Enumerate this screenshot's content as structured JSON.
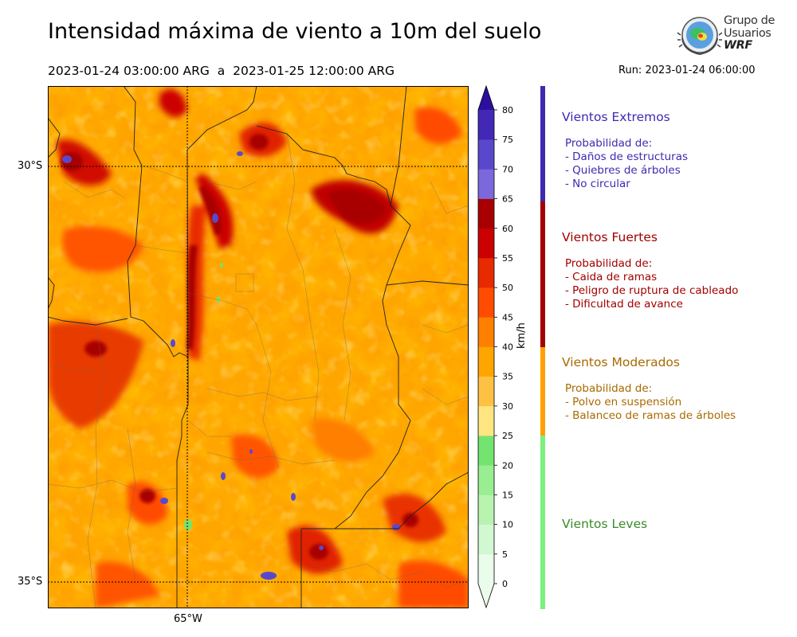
{
  "header": {
    "title": "Intensidad máxima de viento a 10m del suelo",
    "period": "2023-01-24 03:00:00 ARG  a  2023-01-25 12:00:00 ARG",
    "run": "Run: 2023-01-24 06:00:00"
  },
  "logo": {
    "line1": "Grupo de",
    "line2": "Usuarios",
    "line3": "WRF"
  },
  "map": {
    "lat_labels": [
      "30°S",
      "35°S"
    ],
    "lon_labels": [
      "65°W"
    ]
  },
  "colorbar": {
    "unit": "km/h",
    "ticks": [
      "0",
      "5",
      "10",
      "15",
      "20",
      "25",
      "30",
      "35",
      "40",
      "45",
      "50",
      "55",
      "60",
      "65",
      "70",
      "75",
      "80"
    ],
    "colors": [
      "#eafdea",
      "#d2f8d2",
      "#b8f3b0",
      "#98ee90",
      "#74e470",
      "#ffe680",
      "#ffc144",
      "#ffa500",
      "#ff7f00",
      "#ff4c00",
      "#e82a00",
      "#cc0000",
      "#a80000",
      "#7b68dd",
      "#5a48cc",
      "#4328b8",
      "#2c0f9e"
    ]
  },
  "categories": [
    {
      "title": "Vientos Extremos",
      "color": "#3f2ab0",
      "prob_label": "Probabilidad de:",
      "items": [
        "- Daños de estructuras",
        "- Quiebres de árboles",
        "- No circular"
      ]
    },
    {
      "title": "Vientos Fuertes",
      "color": "#a30000",
      "prob_label": "Probabilidad de:",
      "items": [
        "- Caida de ramas",
        "- Peligro de ruptura de cableado",
        "- Dificultad de avance"
      ]
    },
    {
      "title": "Vientos Moderados",
      "color": "#a86a00",
      "bar_color": "#ffa000",
      "prob_label": "Probabilidad de:",
      "items": [
        "- Polvo en suspensión",
        "- Balanceo de ramas de árboles"
      ]
    },
    {
      "title": "Vientos Leves",
      "color": "#3a8a2a",
      "bar_color": "#7cf07c"
    }
  ]
}
